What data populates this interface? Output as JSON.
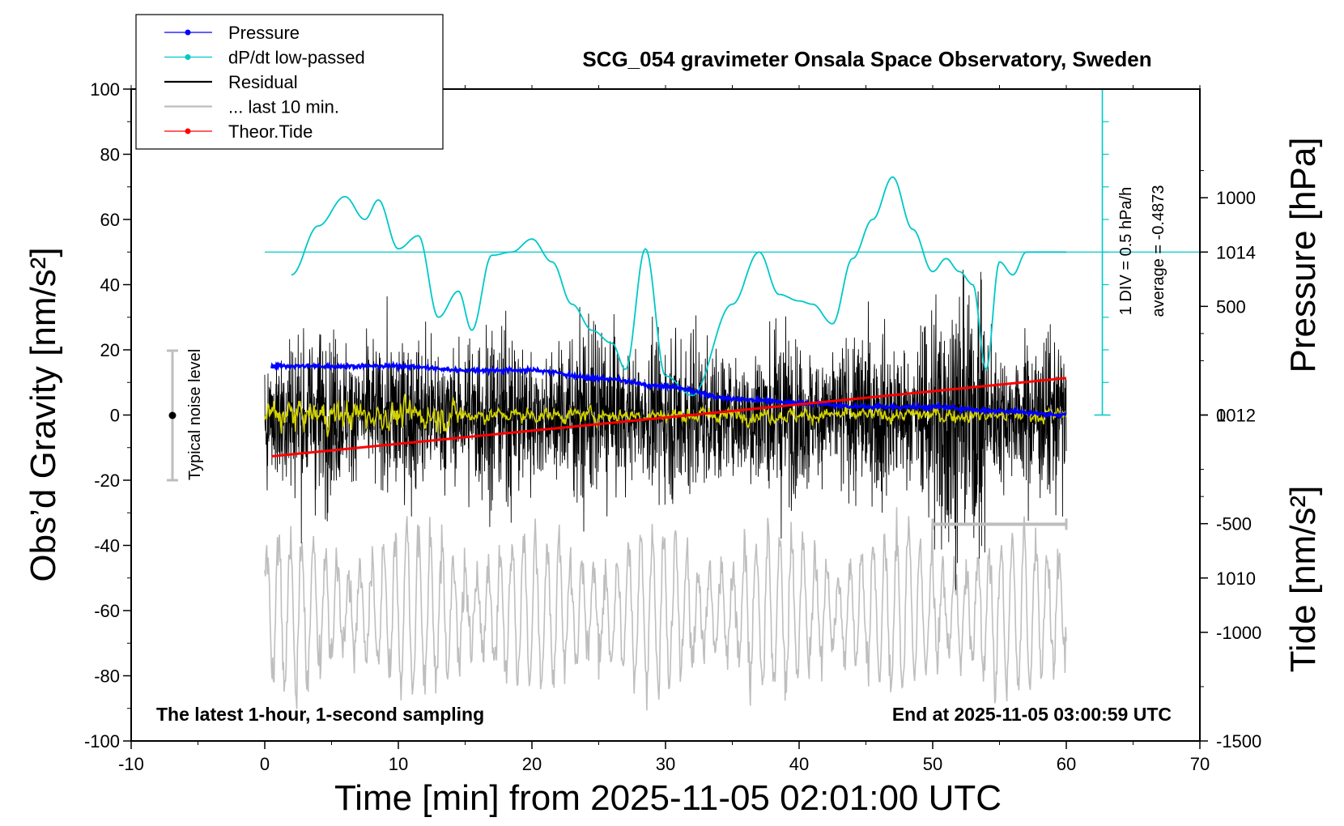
{
  "chart_data": {
    "type": "line",
    "title": "SCG_054 gravimeter Onsala Space Observatory, Sweden",
    "xlabel": "Time [min] from 2025-11-05 02:01:00 UTC",
    "ylabel_left": "Obs’d Gravity [nm/s²]",
    "ylabel_right_top": "Pressure [hPa]",
    "ylabel_right_bottom": "Tide [nm/s²]",
    "xlim": [
      -10,
      70
    ],
    "ylim": [
      -100,
      100
    ],
    "pressure_lim": [
      1008,
      1016
    ],
    "tide_lim": [
      -1500,
      1500
    ],
    "x_ticks": [
      "-10",
      "0",
      "10",
      "20",
      "30",
      "40",
      "50",
      "60",
      "70"
    ],
    "y_ticks": [
      "-100",
      "-80",
      "-60",
      "-40",
      "-20",
      "0",
      "20",
      "40",
      "60",
      "80",
      "100"
    ],
    "pressure_ticks": [
      "1010",
      "1012",
      "1014"
    ],
    "tide_ticks": [
      "-1500",
      "-1000",
      "-500",
      "0",
      "500",
      "1000"
    ],
    "bottom_left_note": "The latest 1-hour, 1-second sampling",
    "bottom_right_note": "End at 2025-11-05 03:00:59 UTC",
    "noise_label": "Typical noise level",
    "dpdt_scale_label": "1 DIV = 0.5 hPa/h",
    "dpdt_average_label": "average = -0.4873",
    "legend": [
      {
        "label": "Pressure",
        "color": "#0000ff",
        "marker": true
      },
      {
        "label": "dP/dt low-passed",
        "color": "#00c8c8",
        "marker": true
      },
      {
        "label": "Residual",
        "color": "#000000",
        "marker": false
      },
      {
        "label": "... last 10 min.",
        "color": "#bebebe",
        "marker": false
      },
      {
        "label": "Theor.Tide",
        "color": "#ff0000",
        "marker": true
      }
    ],
    "series": [
      {
        "name": "Pressure",
        "axis": "pressure",
        "color": "#0000ff",
        "x": [
          0.5,
          5,
          10,
          15,
          20,
          25,
          30,
          35,
          40,
          45,
          50,
          55,
          60
        ],
        "values": [
          1012.6,
          1012.6,
          1012.6,
          1012.55,
          1012.55,
          1012.45,
          1012.35,
          1012.2,
          1012.15,
          1012.1,
          1012.1,
          1012.05,
          1012.0
        ]
      },
      {
        "name": "dP/dt low-passed",
        "axis": "gravity",
        "color": "#00c8c8",
        "x": [
          2,
          4,
          6,
          7.5,
          8.5,
          10,
          11.5,
          13,
          14.5,
          15.5,
          17,
          18.5,
          20,
          21.5,
          23,
          24.5,
          26,
          27,
          28.5,
          30,
          32,
          35,
          37,
          38.5,
          40,
          41,
          42.5,
          44,
          45.5,
          47,
          48.5,
          50,
          51,
          52,
          53,
          54,
          55,
          56,
          57,
          60
        ],
        "values": [
          43,
          58,
          67,
          60,
          66,
          51,
          55,
          30,
          38,
          26,
          49,
          50,
          54,
          47,
          34,
          26,
          22,
          14,
          51,
          12,
          6,
          34,
          50,
          37,
          35,
          34,
          28,
          48,
          60,
          73,
          57,
          44,
          48,
          44,
          40,
          14,
          47,
          43,
          50,
          50
        ]
      },
      {
        "name": "Residual",
        "axis": "gravity",
        "color": "#000000",
        "x": [
          0,
          10,
          20,
          30,
          40,
          50,
          60
        ],
        "values": [
          0,
          0,
          0,
          0,
          0,
          0,
          0
        ]
      },
      {
        "name": "... last 10 min.",
        "axis": "gravity",
        "color": "#bebebe",
        "x": [
          0,
          10,
          20,
          30,
          40,
          50,
          60
        ],
        "values": [
          -60,
          -60,
          -60,
          -60,
          -60,
          -60,
          -60
        ]
      },
      {
        "name": "Theor.Tide",
        "axis": "tide",
        "color": "#ff0000",
        "x": [
          0.5,
          60
        ],
        "values": [
          -190,
          170
        ]
      }
    ]
  }
}
